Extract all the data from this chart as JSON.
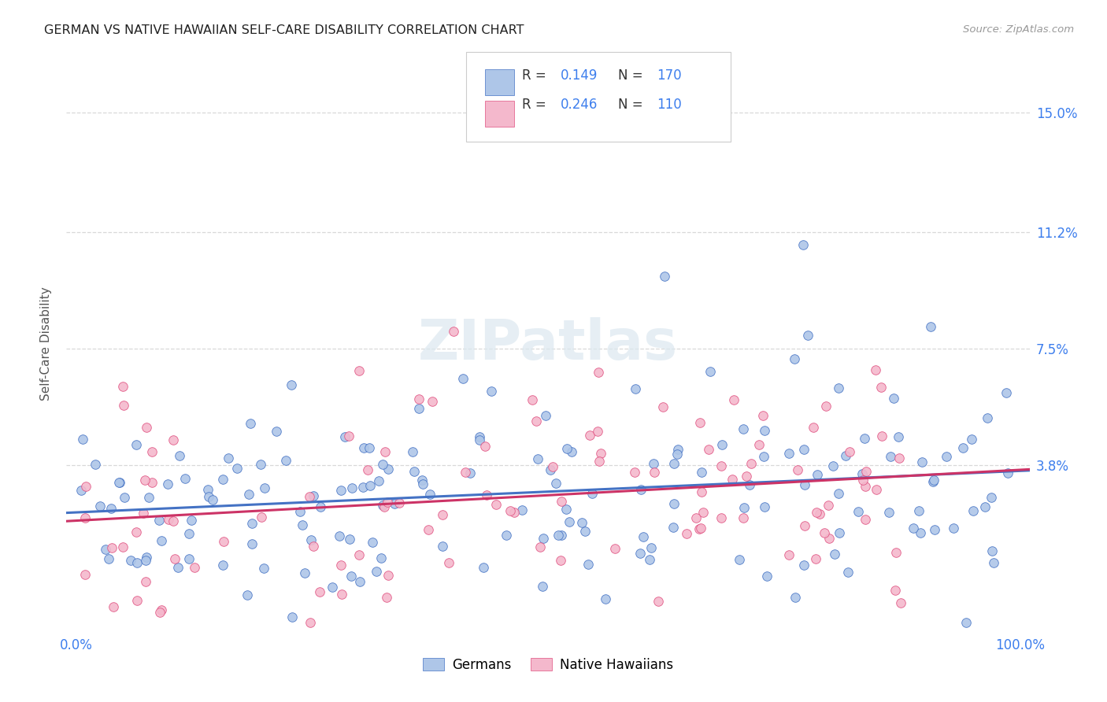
{
  "title": "GERMAN VS NATIVE HAWAIIAN SELF-CARE DISABILITY CORRELATION CHART",
  "source": "Source: ZipAtlas.com",
  "ylabel": "Self-Care Disability",
  "ytick_labels": [
    "3.8%",
    "7.5%",
    "11.2%",
    "15.0%"
  ],
  "ytick_values": [
    0.038,
    0.075,
    0.112,
    0.15
  ],
  "ylim_low": -0.015,
  "ylim_high": 0.168,
  "xlim_low": -0.01,
  "xlim_high": 1.01,
  "german_R": 0.149,
  "german_N": 170,
  "hawaiian_R": 0.246,
  "hawaiian_N": 110,
  "german_color": "#aec6e8",
  "hawaiian_color": "#f4b8cc",
  "german_edge_color": "#4472c4",
  "hawaiian_edge_color": "#e05080",
  "german_line_color": "#4472c4",
  "hawaiian_line_color": "#cc3366",
  "title_color": "#222222",
  "source_color": "#999999",
  "axis_label_color": "#3d7eed",
  "background_color": "#ffffff",
  "grid_color": "#d8d8d8",
  "watermark_text": "ZIPatlas",
  "watermark_color": "#dce8f0",
  "legend_label_german": "Germans",
  "legend_label_hawaiian": "Native Hawaiians",
  "seed": 42
}
